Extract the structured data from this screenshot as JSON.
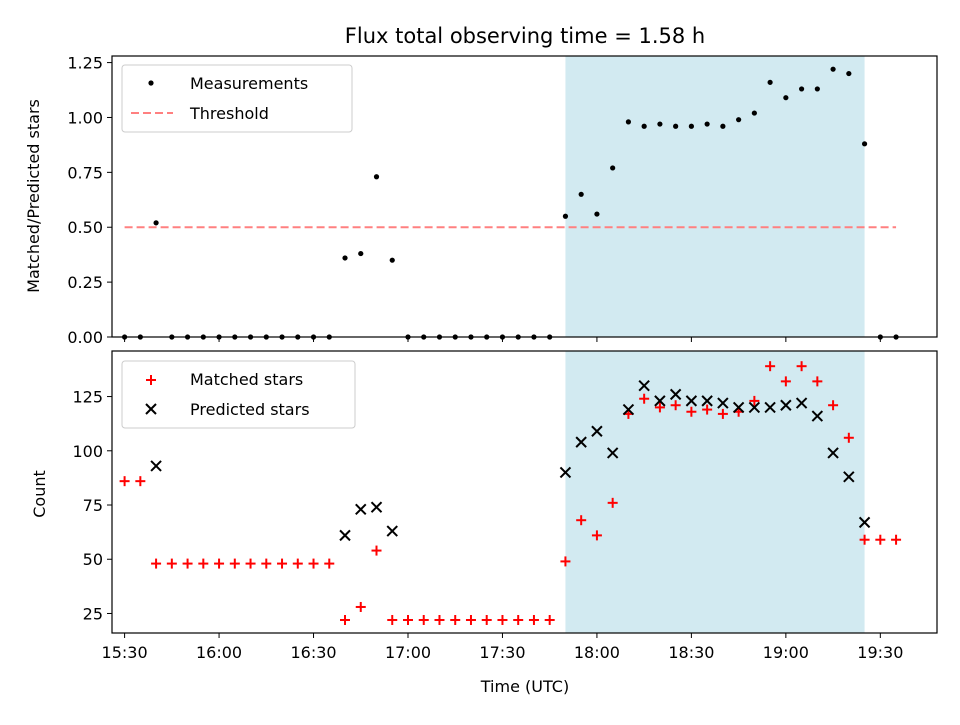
{
  "colors": {
    "background": "#ffffff",
    "measurement": "#000000",
    "threshold": "#ff8080",
    "span": "#add8e6",
    "matched": "#ff0000",
    "predicted": "#000000"
  },
  "chart_data": [
    {
      "type": "scatter",
      "title": "Flux total observing time = 1.58 h",
      "xlabel": "",
      "ylabel": "Matched/Predicted stars",
      "xlim": [
        "15:26",
        "19:48"
      ],
      "ylim": [
        0,
        1.28
      ],
      "yticks": [
        "0.00",
        "0.25",
        "0.50",
        "0.75",
        "1.00",
        "1.25"
      ],
      "grid": false,
      "legend_position": "top-left",
      "shaded_span": {
        "start": "17:50",
        "end": "19:25"
      },
      "series": [
        {
          "name": "Measurements",
          "marker": "dot",
          "x": [
            "15:30",
            "15:35",
            "15:40",
            "15:45",
            "15:50",
            "15:55",
            "16:00",
            "16:05",
            "16:10",
            "16:15",
            "16:20",
            "16:25",
            "16:30",
            "16:35",
            "16:40",
            "16:45",
            "16:50",
            "16:55",
            "17:00",
            "17:05",
            "17:10",
            "17:15",
            "17:20",
            "17:25",
            "17:30",
            "17:35",
            "17:40",
            "17:45",
            "17:50",
            "17:55",
            "18:00",
            "18:05",
            "18:10",
            "18:15",
            "18:20",
            "18:25",
            "18:30",
            "18:35",
            "18:40",
            "18:45",
            "18:50",
            "18:55",
            "19:00",
            "19:05",
            "19:10",
            "19:15",
            "19:20",
            "19:25",
            "19:30",
            "19:35"
          ],
          "y": [
            0,
            0,
            0.52,
            0,
            0,
            0,
            0,
            0,
            0,
            0,
            0,
            0,
            0,
            0,
            0.36,
            0.38,
            0.73,
            0.35,
            0,
            0,
            0,
            0,
            0,
            0,
            0,
            0,
            0,
            0,
            0.55,
            0.65,
            0.56,
            0.77,
            0.98,
            0.96,
            0.97,
            0.96,
            0.96,
            0.97,
            0.96,
            0.99,
            1.02,
            1.16,
            1.09,
            1.13,
            1.13,
            1.22,
            1.2,
            0.88,
            0,
            0
          ]
        },
        {
          "name": "Threshold",
          "marker": "dashed-line",
          "x": [
            "15:30",
            "19:35"
          ],
          "y": [
            0.5,
            0.5
          ]
        }
      ]
    },
    {
      "type": "scatter",
      "title": "",
      "xlabel": "Time (UTC)",
      "ylabel": "Count",
      "xlim": [
        "15:26",
        "19:48"
      ],
      "ylim": [
        16,
        146
      ],
      "yticks": [
        "25",
        "50",
        "75",
        "100",
        "125"
      ],
      "xticks": [
        "15:30",
        "16:00",
        "16:30",
        "17:00",
        "17:30",
        "18:00",
        "18:30",
        "19:00",
        "19:30"
      ],
      "grid": false,
      "legend_position": "top-left",
      "shaded_span": {
        "start": "17:50",
        "end": "19:25"
      },
      "series": [
        {
          "name": "Matched stars",
          "marker": "plus",
          "x": [
            "15:30",
            "15:35",
            "15:40",
            "15:45",
            "15:50",
            "15:55",
            "16:00",
            "16:05",
            "16:10",
            "16:15",
            "16:20",
            "16:25",
            "16:30",
            "16:35",
            "16:40",
            "16:45",
            "16:50",
            "16:55",
            "17:00",
            "17:05",
            "17:10",
            "17:15",
            "17:20",
            "17:25",
            "17:30",
            "17:35",
            "17:40",
            "17:45",
            "17:50",
            "17:55",
            "18:00",
            "18:05",
            "18:10",
            "18:15",
            "18:20",
            "18:25",
            "18:30",
            "18:35",
            "18:40",
            "18:45",
            "18:50",
            "18:55",
            "19:00",
            "19:05",
            "19:10",
            "19:15",
            "19:20",
            "19:25",
            "19:30",
            "19:35"
          ],
          "y": [
            86,
            86,
            48,
            48,
            48,
            48,
            48,
            48,
            48,
            48,
            48,
            48,
            48,
            48,
            22,
            28,
            54,
            22,
            22,
            22,
            22,
            22,
            22,
            22,
            22,
            22,
            22,
            22,
            49,
            68,
            61,
            76,
            117,
            124,
            120,
            121,
            118,
            119,
            117,
            118,
            123,
            139,
            132,
            139,
            132,
            121,
            106,
            59,
            59,
            59
          ]
        },
        {
          "name": "Predicted stars",
          "marker": "x",
          "x": [
            "15:40",
            "16:40",
            "16:45",
            "16:50",
            "16:55",
            "17:50",
            "17:55",
            "18:00",
            "18:05",
            "18:10",
            "18:15",
            "18:20",
            "18:25",
            "18:30",
            "18:35",
            "18:40",
            "18:45",
            "18:50",
            "18:55",
            "19:00",
            "19:05",
            "19:10",
            "19:15",
            "19:20",
            "19:25"
          ],
          "y": [
            93,
            61,
            73,
            74,
            63,
            90,
            104,
            109,
            99,
            119,
            130,
            123,
            126,
            123,
            123,
            122,
            120,
            120,
            120,
            121,
            122,
            116,
            99,
            88,
            67
          ]
        }
      ]
    }
  ]
}
